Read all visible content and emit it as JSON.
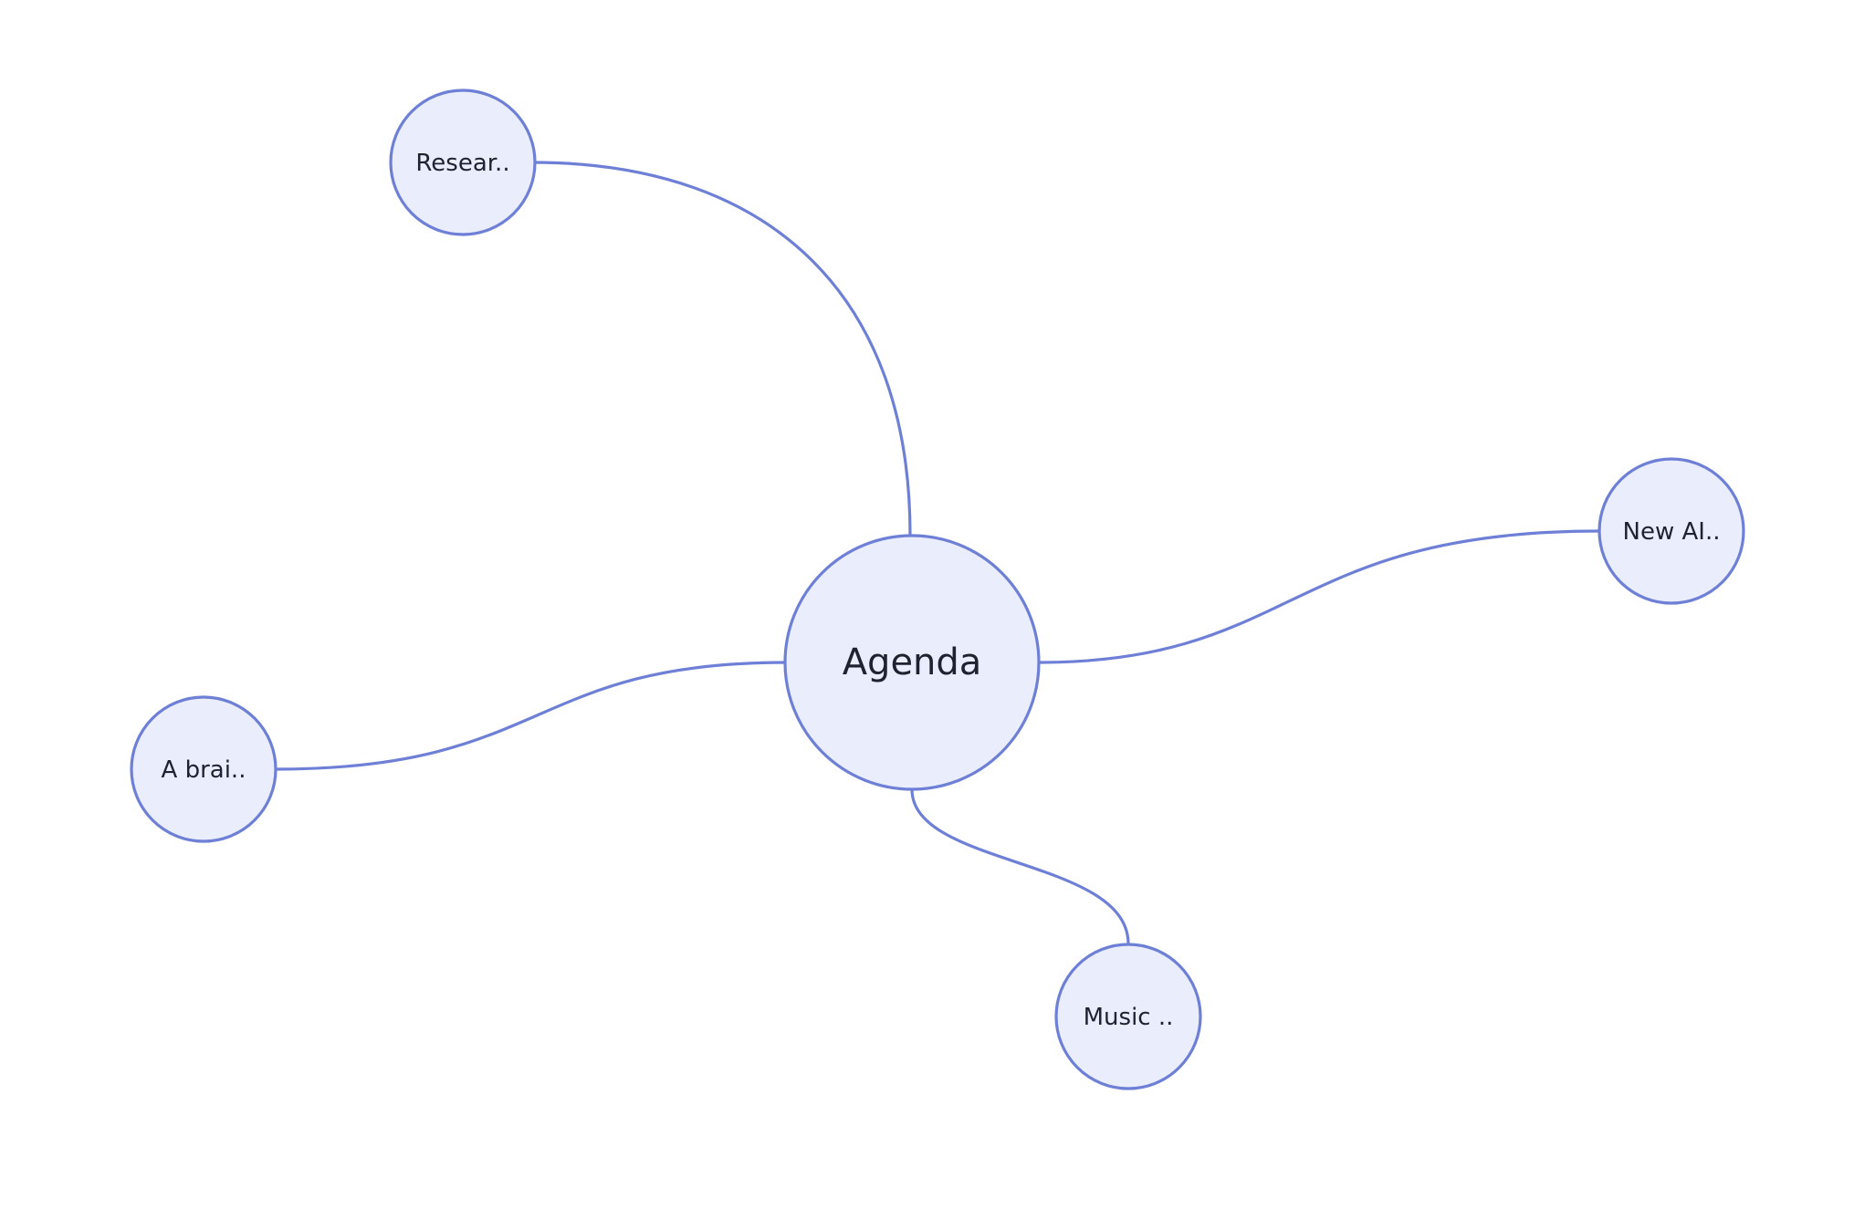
{
  "mindmap": {
    "root": {
      "label": "Agenda"
    },
    "children": [
      {
        "id": "research",
        "label": "Resear.."
      },
      {
        "id": "newai",
        "label": "New AI.."
      },
      {
        "id": "abrain",
        "label": "A brai.."
      },
      {
        "id": "music",
        "label": "Music .."
      }
    ]
  },
  "colors": {
    "node_fill": "#eaedfb",
    "node_stroke": "#6e7fd6",
    "edge": "#6e7fd6",
    "text": "#1f2330",
    "background": "#ffffff"
  }
}
